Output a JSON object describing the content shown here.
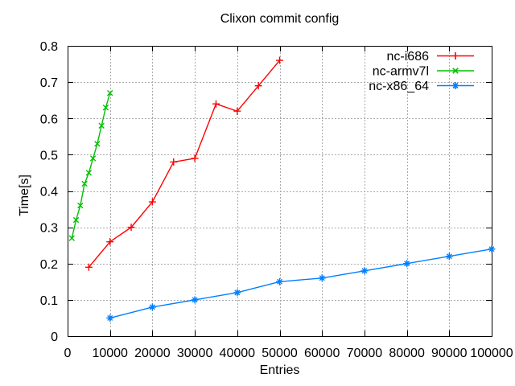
{
  "chart_data": {
    "type": "line",
    "title": "Clixon commit config",
    "xlabel": "Entries",
    "ylabel": "Time[s]",
    "xlim": [
      0,
      100000
    ],
    "ylim": [
      0,
      0.8
    ],
    "xticks": [
      0,
      10000,
      20000,
      30000,
      40000,
      50000,
      60000,
      70000,
      80000,
      90000,
      100000
    ],
    "xtick_labels": [
      "0",
      "10000",
      "20000",
      "30000",
      "40000",
      "50000",
      "60000",
      "70000",
      "80000",
      "90000",
      "100000"
    ],
    "yticks": [
      0,
      0.1,
      0.2,
      0.3,
      0.4,
      0.5,
      0.6,
      0.7,
      0.8
    ],
    "ytick_labels": [
      "0",
      "0.1",
      "0.2",
      "0.3",
      "0.4",
      "0.5",
      "0.6",
      "0.7",
      "0.8"
    ],
    "grid": true,
    "legend_position": "top-right-inside",
    "colors": {
      "background": "#ffffff",
      "axis": "#000000",
      "grid": "#aaaaaa",
      "text": "#000000"
    },
    "series": [
      {
        "name": "nc-i686",
        "color": "#ff0000",
        "marker": "plus",
        "x": [
          5000,
          10000,
          15000,
          20000,
          25000,
          30000,
          35000,
          40000,
          45000,
          50000
        ],
        "y": [
          0.19,
          0.26,
          0.3,
          0.37,
          0.48,
          0.49,
          0.64,
          0.62,
          0.69,
          0.76
        ]
      },
      {
        "name": "nc-armv7l",
        "color": "#00c000",
        "marker": "cross",
        "x": [
          1000,
          2000,
          3000,
          4000,
          5000,
          6000,
          7000,
          8000,
          9000,
          10000
        ],
        "y": [
          0.27,
          0.32,
          0.36,
          0.42,
          0.45,
          0.49,
          0.53,
          0.58,
          0.63,
          0.67
        ]
      },
      {
        "name": "nc-x86_64",
        "color": "#0080ff",
        "marker": "asterisk",
        "x": [
          10000,
          20000,
          30000,
          40000,
          50000,
          60000,
          70000,
          80000,
          90000,
          100000
        ],
        "y": [
          0.05,
          0.08,
          0.1,
          0.12,
          0.15,
          0.16,
          0.18,
          0.2,
          0.22,
          0.24
        ]
      }
    ]
  }
}
